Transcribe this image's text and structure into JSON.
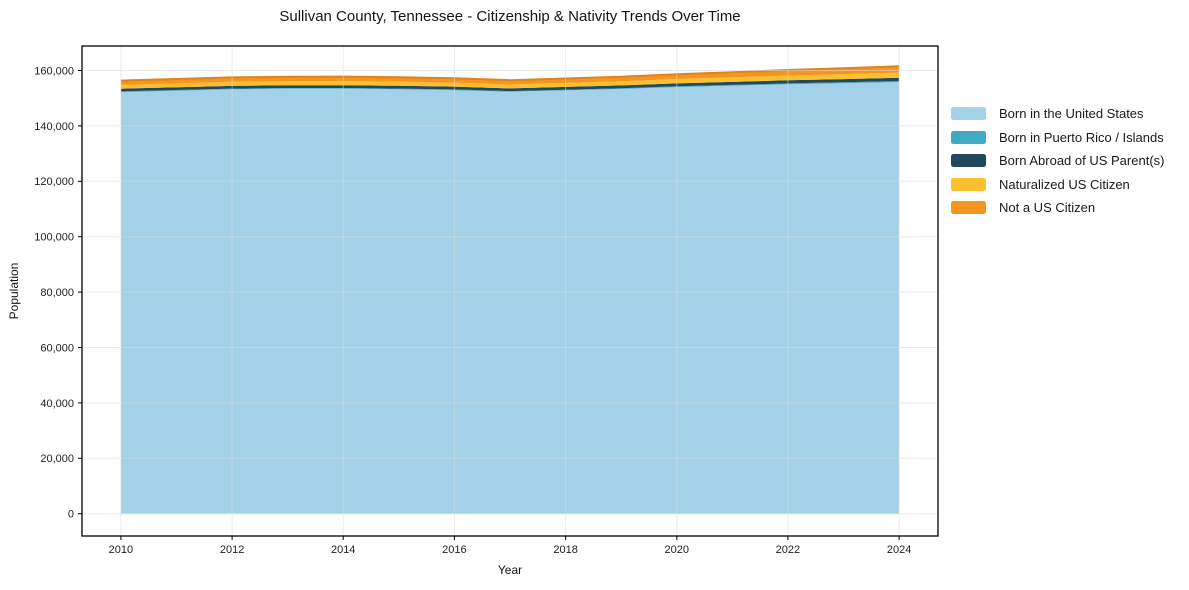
{
  "chart_data": {
    "type": "area",
    "stacked": true,
    "title": "Sullivan County, Tennessee - Citizenship & Nativity Trends Over Time",
    "xlabel": "Year",
    "ylabel": "Population",
    "x": [
      2010,
      2011,
      2012,
      2013,
      2014,
      2015,
      2016,
      2017,
      2018,
      2019,
      2020,
      2021,
      2022,
      2023,
      2024
    ],
    "series": [
      {
        "name": "Born in the United States",
        "color": "#a3d2e8",
        "values": [
          152200,
          152700,
          153200,
          153400,
          153400,
          153200,
          152900,
          152300,
          152800,
          153300,
          154000,
          154500,
          155000,
          155400,
          155800
        ]
      },
      {
        "name": "Born in Puerto Rico / Islands",
        "color": "#41aac3",
        "values": [
          260,
          260,
          270,
          270,
          280,
          280,
          280,
          270,
          280,
          290,
          300,
          310,
          330,
          340,
          360
        ]
      },
      {
        "name": "Born Abroad of US Parent(s)",
        "color": "#22485c",
        "values": [
          950,
          960,
          980,
          990,
          1000,
          1000,
          990,
          970,
          990,
          1020,
          1050,
          1080,
          1120,
          1150,
          1190
        ]
      },
      {
        "name": "Naturalized US Citizen",
        "color": "#fcc02f",
        "values": [
          1400,
          1430,
          1460,
          1480,
          1480,
          1470,
          1450,
          1420,
          1450,
          1500,
          1560,
          1630,
          1710,
          1800,
          1890
        ]
      },
      {
        "name": "Not a US Citizen",
        "color": "#f69420",
        "values": [
          1550,
          1580,
          1610,
          1630,
          1630,
          1610,
          1580,
          1550,
          1600,
          1660,
          1760,
          1880,
          2010,
          2140,
          2260
        ]
      }
    ],
    "xticks": [
      2010,
      2012,
      2014,
      2016,
      2018,
      2020,
      2022,
      2024
    ],
    "yticks": [
      0,
      20000,
      40000,
      60000,
      80000,
      100000,
      120000,
      140000,
      160000
    ],
    "xlim": [
      2009.3,
      2024.7
    ],
    "ylim": [
      -8040,
      168840
    ],
    "grid": true,
    "grid_color": "#dcdcdc",
    "legend_position": "right",
    "top_edge_color": "#e2821a",
    "frame_color": "#000000",
    "tick_label_color": "#222222",
    "background": "#ffffff"
  }
}
